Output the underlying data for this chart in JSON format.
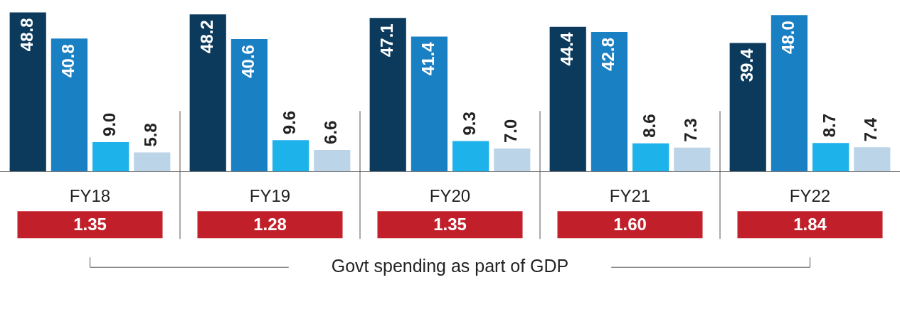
{
  "chart_data": {
    "type": "bar",
    "categories": [
      "FY18",
      "FY19",
      "FY20",
      "FY21",
      "FY22"
    ],
    "series": [
      {
        "color": "#0b3a5c",
        "values": [
          48.8,
          48.2,
          47.1,
          44.4,
          39.4
        ],
        "value_labels": [
          "48.8",
          "48.2",
          "47.1",
          "44.4",
          "39.4"
        ]
      },
      {
        "color": "#1a80c4",
        "values": [
          40.8,
          40.6,
          41.4,
          42.8,
          48.0
        ],
        "value_labels": [
          "40.8",
          "40.6",
          "41.4",
          "42.8",
          "48.0"
        ]
      },
      {
        "color": "#1eb2ea",
        "values": [
          9.0,
          9.6,
          9.3,
          8.6,
          8.7
        ],
        "value_labels": [
          "9.0",
          "9.6",
          "9.3",
          "8.6",
          "8.7"
        ]
      },
      {
        "color": "#bcd4e8",
        "values": [
          5.8,
          6.6,
          7.0,
          7.3,
          7.4
        ],
        "value_labels": [
          "5.8",
          "6.6",
          "7.0",
          "7.3",
          "7.4"
        ]
      }
    ],
    "annotations": [
      "1.35",
      "1.28",
      "1.35",
      "1.60",
      "1.84",
      "Govt spending as part of GDP"
    ]
  }
}
